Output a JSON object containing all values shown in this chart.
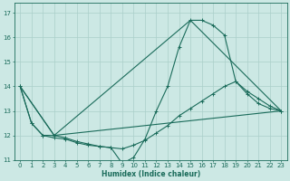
{
  "xlabel": "Humidex (Indice chaleur)",
  "bg_color": "#cce8e4",
  "grid_color": "#aacfc9",
  "line_color": "#1a6b5a",
  "xlim": [
    -0.5,
    23.5
  ],
  "ylim": [
    11,
    17.4
  ],
  "yticks": [
    11,
    12,
    13,
    14,
    15,
    16,
    17
  ],
  "xticks": [
    0,
    1,
    2,
    3,
    4,
    5,
    6,
    7,
    8,
    9,
    10,
    11,
    12,
    13,
    14,
    15,
    16,
    17,
    18,
    19,
    20,
    21,
    22,
    23
  ],
  "lines": [
    {
      "x": [
        0,
        1,
        2,
        3,
        4,
        5,
        6,
        7,
        8,
        9,
        10,
        11,
        12,
        13,
        14,
        15,
        16,
        17,
        18,
        19,
        20,
        21,
        22,
        23
      ],
      "y": [
        14.0,
        12.5,
        12.0,
        11.9,
        11.85,
        11.7,
        11.6,
        11.55,
        11.5,
        10.85,
        11.1,
        11.85,
        13.0,
        14.0,
        15.6,
        16.7,
        16.7,
        16.5,
        16.1,
        14.2,
        13.8,
        13.5,
        13.2,
        13.0
      ],
      "marker": true
    },
    {
      "x": [
        0,
        1,
        2,
        3,
        4,
        5,
        6,
        7,
        8,
        9,
        10,
        11,
        12,
        13,
        14,
        15,
        16,
        17,
        18,
        19,
        20,
        21,
        22,
        23
      ],
      "y": [
        14.0,
        12.5,
        12.0,
        12.0,
        11.9,
        11.75,
        11.65,
        11.55,
        11.5,
        11.45,
        11.6,
        11.8,
        12.1,
        12.4,
        12.8,
        13.1,
        13.4,
        13.7,
        14.0,
        14.2,
        13.7,
        13.3,
        13.1,
        13.0
      ],
      "marker": true
    },
    {
      "x": [
        0,
        3,
        23
      ],
      "y": [
        14.0,
        12.0,
        13.0
      ],
      "marker": false
    },
    {
      "x": [
        0,
        3,
        15,
        23
      ],
      "y": [
        14.0,
        12.0,
        16.7,
        13.0
      ],
      "marker": false
    }
  ]
}
